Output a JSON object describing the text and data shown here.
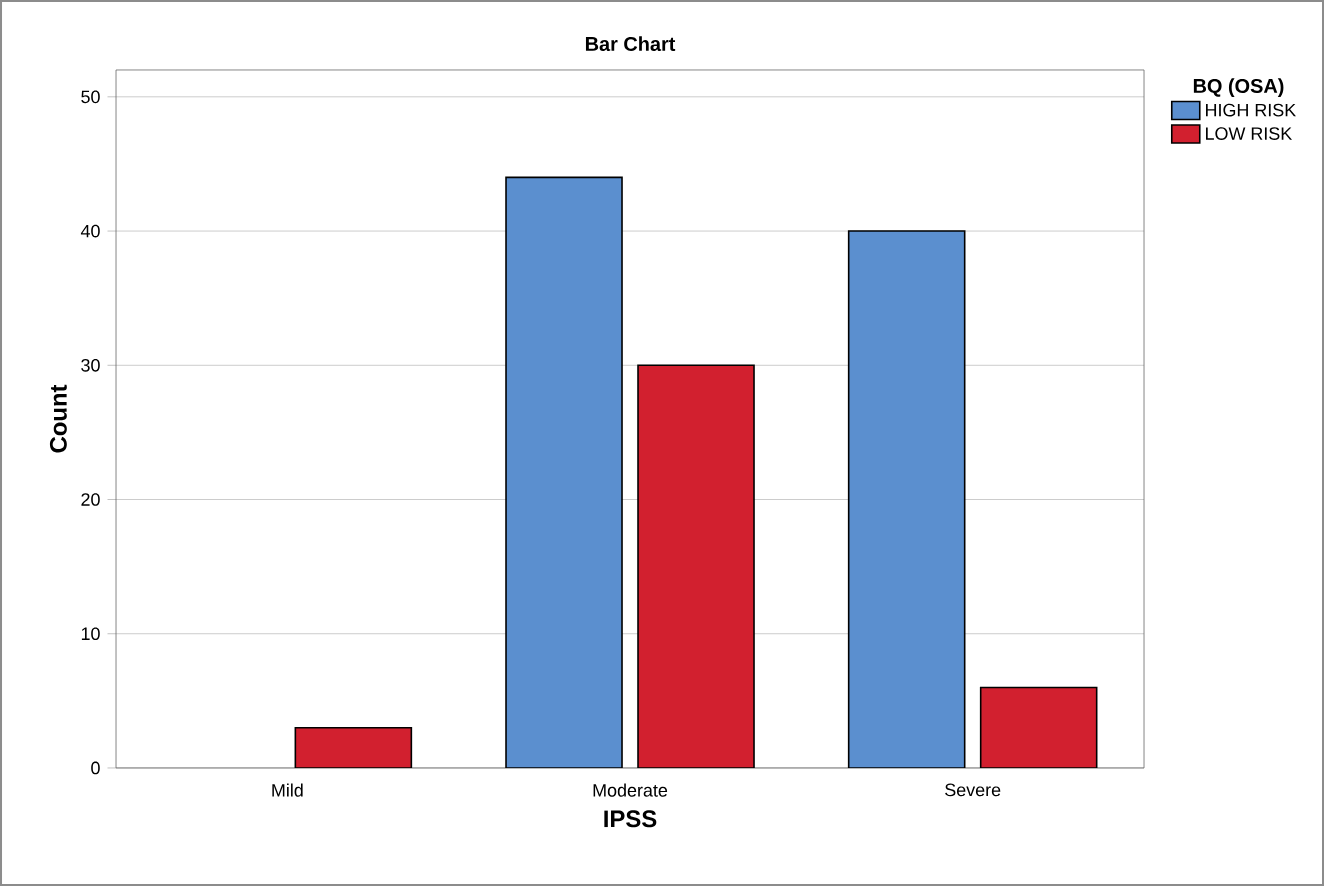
{
  "chart_data": {
    "type": "bar",
    "title": "Bar Chart",
    "xlabel": "IPSS",
    "ylabel": "Count",
    "legend_title": "BQ (OSA)",
    "categories": [
      "Mild",
      "Moderate",
      "Severe"
    ],
    "series": [
      {
        "name": "HIGH RISK",
        "color": "#5b8fcf",
        "values": [
          null,
          44,
          40
        ]
      },
      {
        "name": "LOW RISK",
        "color": "#d2202f",
        "values": [
          3,
          30,
          6
        ]
      }
    ],
    "ylim": [
      0,
      52
    ],
    "yticks": [
      0,
      10,
      20,
      30,
      40,
      50
    ],
    "grid": "y",
    "legend": "top right"
  }
}
